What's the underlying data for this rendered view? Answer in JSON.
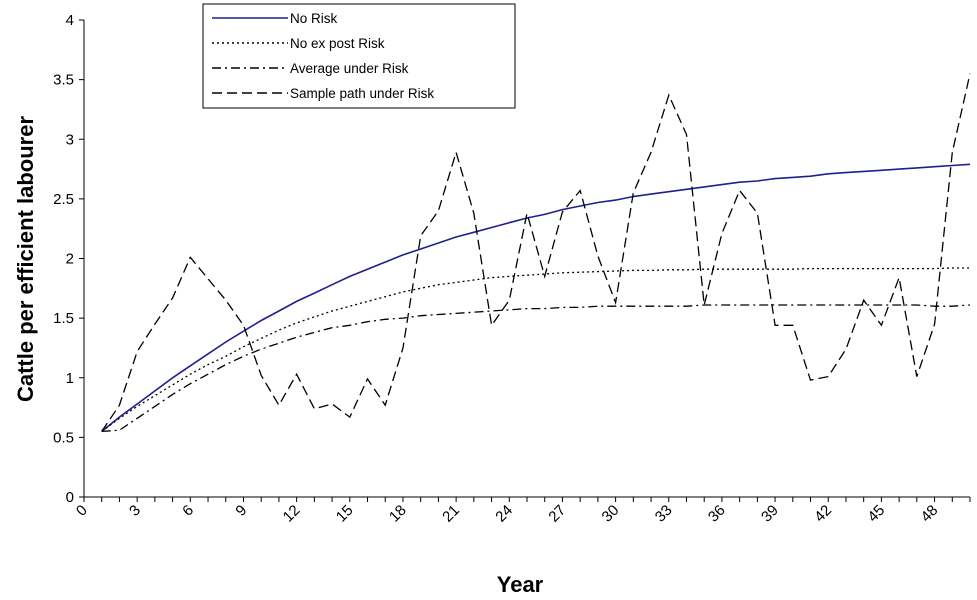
{
  "chart_data": {
    "type": "line",
    "title": "",
    "xlabel": "Year",
    "ylabel": "Cattle per efficient labourer",
    "xlim": [
      0,
      50
    ],
    "ylim": [
      0,
      4
    ],
    "x_ticks": [
      0,
      3,
      6,
      9,
      12,
      15,
      18,
      21,
      24,
      27,
      30,
      33,
      36,
      39,
      42,
      45,
      48
    ],
    "y_ticks": [
      0,
      0.5,
      1,
      1.5,
      2,
      2.5,
      3,
      3.5,
      4
    ],
    "x_tick_labels": [
      "0",
      "3",
      "6",
      "9",
      "12",
      "15",
      "18",
      "21",
      "24",
      "27",
      "30",
      "33",
      "36",
      "39",
      "42",
      "45",
      "48"
    ],
    "y_tick_labels": [
      "0",
      "0.5",
      "1",
      "1.5",
      "2",
      "2.5",
      "3",
      "3.5",
      "4"
    ],
    "grid": false,
    "legend_position": "top-left",
    "series": [
      {
        "name": "No Risk",
        "color": "#1f1f8f",
        "style": "solid",
        "x": [
          1,
          2,
          3,
          4,
          5,
          6,
          7,
          8,
          9,
          10,
          11,
          12,
          13,
          14,
          15,
          16,
          17,
          18,
          19,
          20,
          21,
          22,
          23,
          24,
          25,
          26,
          27,
          28,
          29,
          30,
          31,
          32,
          33,
          34,
          35,
          36,
          37,
          38,
          39,
          40,
          41,
          42,
          43,
          44,
          45,
          46,
          47,
          48,
          49,
          50
        ],
        "values": [
          0.55,
          0.67,
          0.78,
          0.89,
          1.0,
          1.1,
          1.2,
          1.3,
          1.39,
          1.48,
          1.56,
          1.64,
          1.71,
          1.78,
          1.85,
          1.91,
          1.97,
          2.03,
          2.08,
          2.13,
          2.18,
          2.22,
          2.26,
          2.3,
          2.34,
          2.37,
          2.41,
          2.44,
          2.47,
          2.49,
          2.52,
          2.54,
          2.56,
          2.58,
          2.6,
          2.62,
          2.64,
          2.65,
          2.67,
          2.68,
          2.69,
          2.71,
          2.72,
          2.73,
          2.74,
          2.75,
          2.76,
          2.77,
          2.78,
          2.79
        ]
      },
      {
        "name": "No ex post Risk",
        "color": "#000000",
        "style": "dotted",
        "x": [
          1,
          2,
          3,
          4,
          5,
          6,
          7,
          8,
          9,
          10,
          11,
          12,
          13,
          14,
          15,
          16,
          17,
          18,
          19,
          20,
          21,
          22,
          23,
          24,
          25,
          26,
          27,
          28,
          29,
          30,
          31,
          32,
          33,
          34,
          35,
          36,
          37,
          38,
          39,
          40,
          41,
          42,
          43,
          44,
          45,
          46,
          47,
          48,
          49,
          50
        ],
        "values": [
          0.55,
          0.66,
          0.76,
          0.85,
          0.94,
          1.03,
          1.11,
          1.18,
          1.26,
          1.33,
          1.4,
          1.46,
          1.51,
          1.56,
          1.6,
          1.64,
          1.68,
          1.72,
          1.75,
          1.78,
          1.8,
          1.82,
          1.84,
          1.85,
          1.86,
          1.87,
          1.88,
          1.885,
          1.89,
          1.895,
          1.9,
          1.9,
          1.905,
          1.905,
          1.91,
          1.91,
          1.91,
          1.91,
          1.91,
          1.91,
          1.915,
          1.915,
          1.915,
          1.915,
          1.915,
          1.915,
          1.915,
          1.915,
          1.92,
          1.92
        ]
      },
      {
        "name": "Average under Risk",
        "color": "#000000",
        "style": "dashdot",
        "x": [
          1,
          2,
          3,
          4,
          5,
          6,
          7,
          8,
          9,
          10,
          11,
          12,
          13,
          14,
          15,
          16,
          17,
          18,
          19,
          20,
          21,
          22,
          23,
          24,
          25,
          26,
          27,
          28,
          29,
          30,
          31,
          32,
          33,
          34,
          35,
          36,
          37,
          38,
          39,
          40,
          41,
          42,
          43,
          44,
          45,
          46,
          47,
          48,
          49,
          50
        ],
        "values": [
          0.55,
          0.56,
          0.66,
          0.76,
          0.86,
          0.95,
          1.03,
          1.11,
          1.18,
          1.24,
          1.29,
          1.34,
          1.38,
          1.42,
          1.44,
          1.47,
          1.49,
          1.5,
          1.52,
          1.53,
          1.54,
          1.55,
          1.56,
          1.57,
          1.58,
          1.58,
          1.59,
          1.59,
          1.6,
          1.6,
          1.6,
          1.6,
          1.6,
          1.6,
          1.61,
          1.61,
          1.61,
          1.61,
          1.61,
          1.61,
          1.61,
          1.61,
          1.61,
          1.61,
          1.61,
          1.61,
          1.61,
          1.6,
          1.6,
          1.61
        ]
      },
      {
        "name": "Sample path under Risk",
        "color": "#000000",
        "style": "dashed",
        "x": [
          1,
          2,
          3,
          4,
          5,
          6,
          7,
          8,
          9,
          10,
          11,
          12,
          13,
          14,
          15,
          16,
          17,
          18,
          19,
          20,
          21,
          22,
          23,
          24,
          25,
          26,
          27,
          28,
          29,
          30,
          31,
          32,
          33,
          34,
          35,
          36,
          37,
          38,
          39,
          40,
          41,
          42,
          43,
          44,
          45,
          46,
          47,
          48,
          49,
          50
        ],
        "values": [
          0.55,
          0.77,
          1.22,
          1.45,
          1.67,
          2.01,
          1.83,
          1.65,
          1.44,
          1.02,
          0.77,
          1.03,
          0.74,
          0.78,
          0.67,
          0.99,
          0.77,
          1.25,
          2.19,
          2.4,
          2.89,
          2.38,
          1.44,
          1.65,
          2.38,
          1.85,
          2.39,
          2.57,
          2.02,
          1.63,
          2.55,
          2.89,
          3.37,
          3.04,
          1.61,
          2.21,
          2.57,
          2.38,
          1.44,
          1.44,
          0.98,
          1.01,
          1.24,
          1.65,
          1.44,
          1.84,
          1.01,
          1.45,
          2.89,
          3.55
        ]
      }
    ]
  }
}
